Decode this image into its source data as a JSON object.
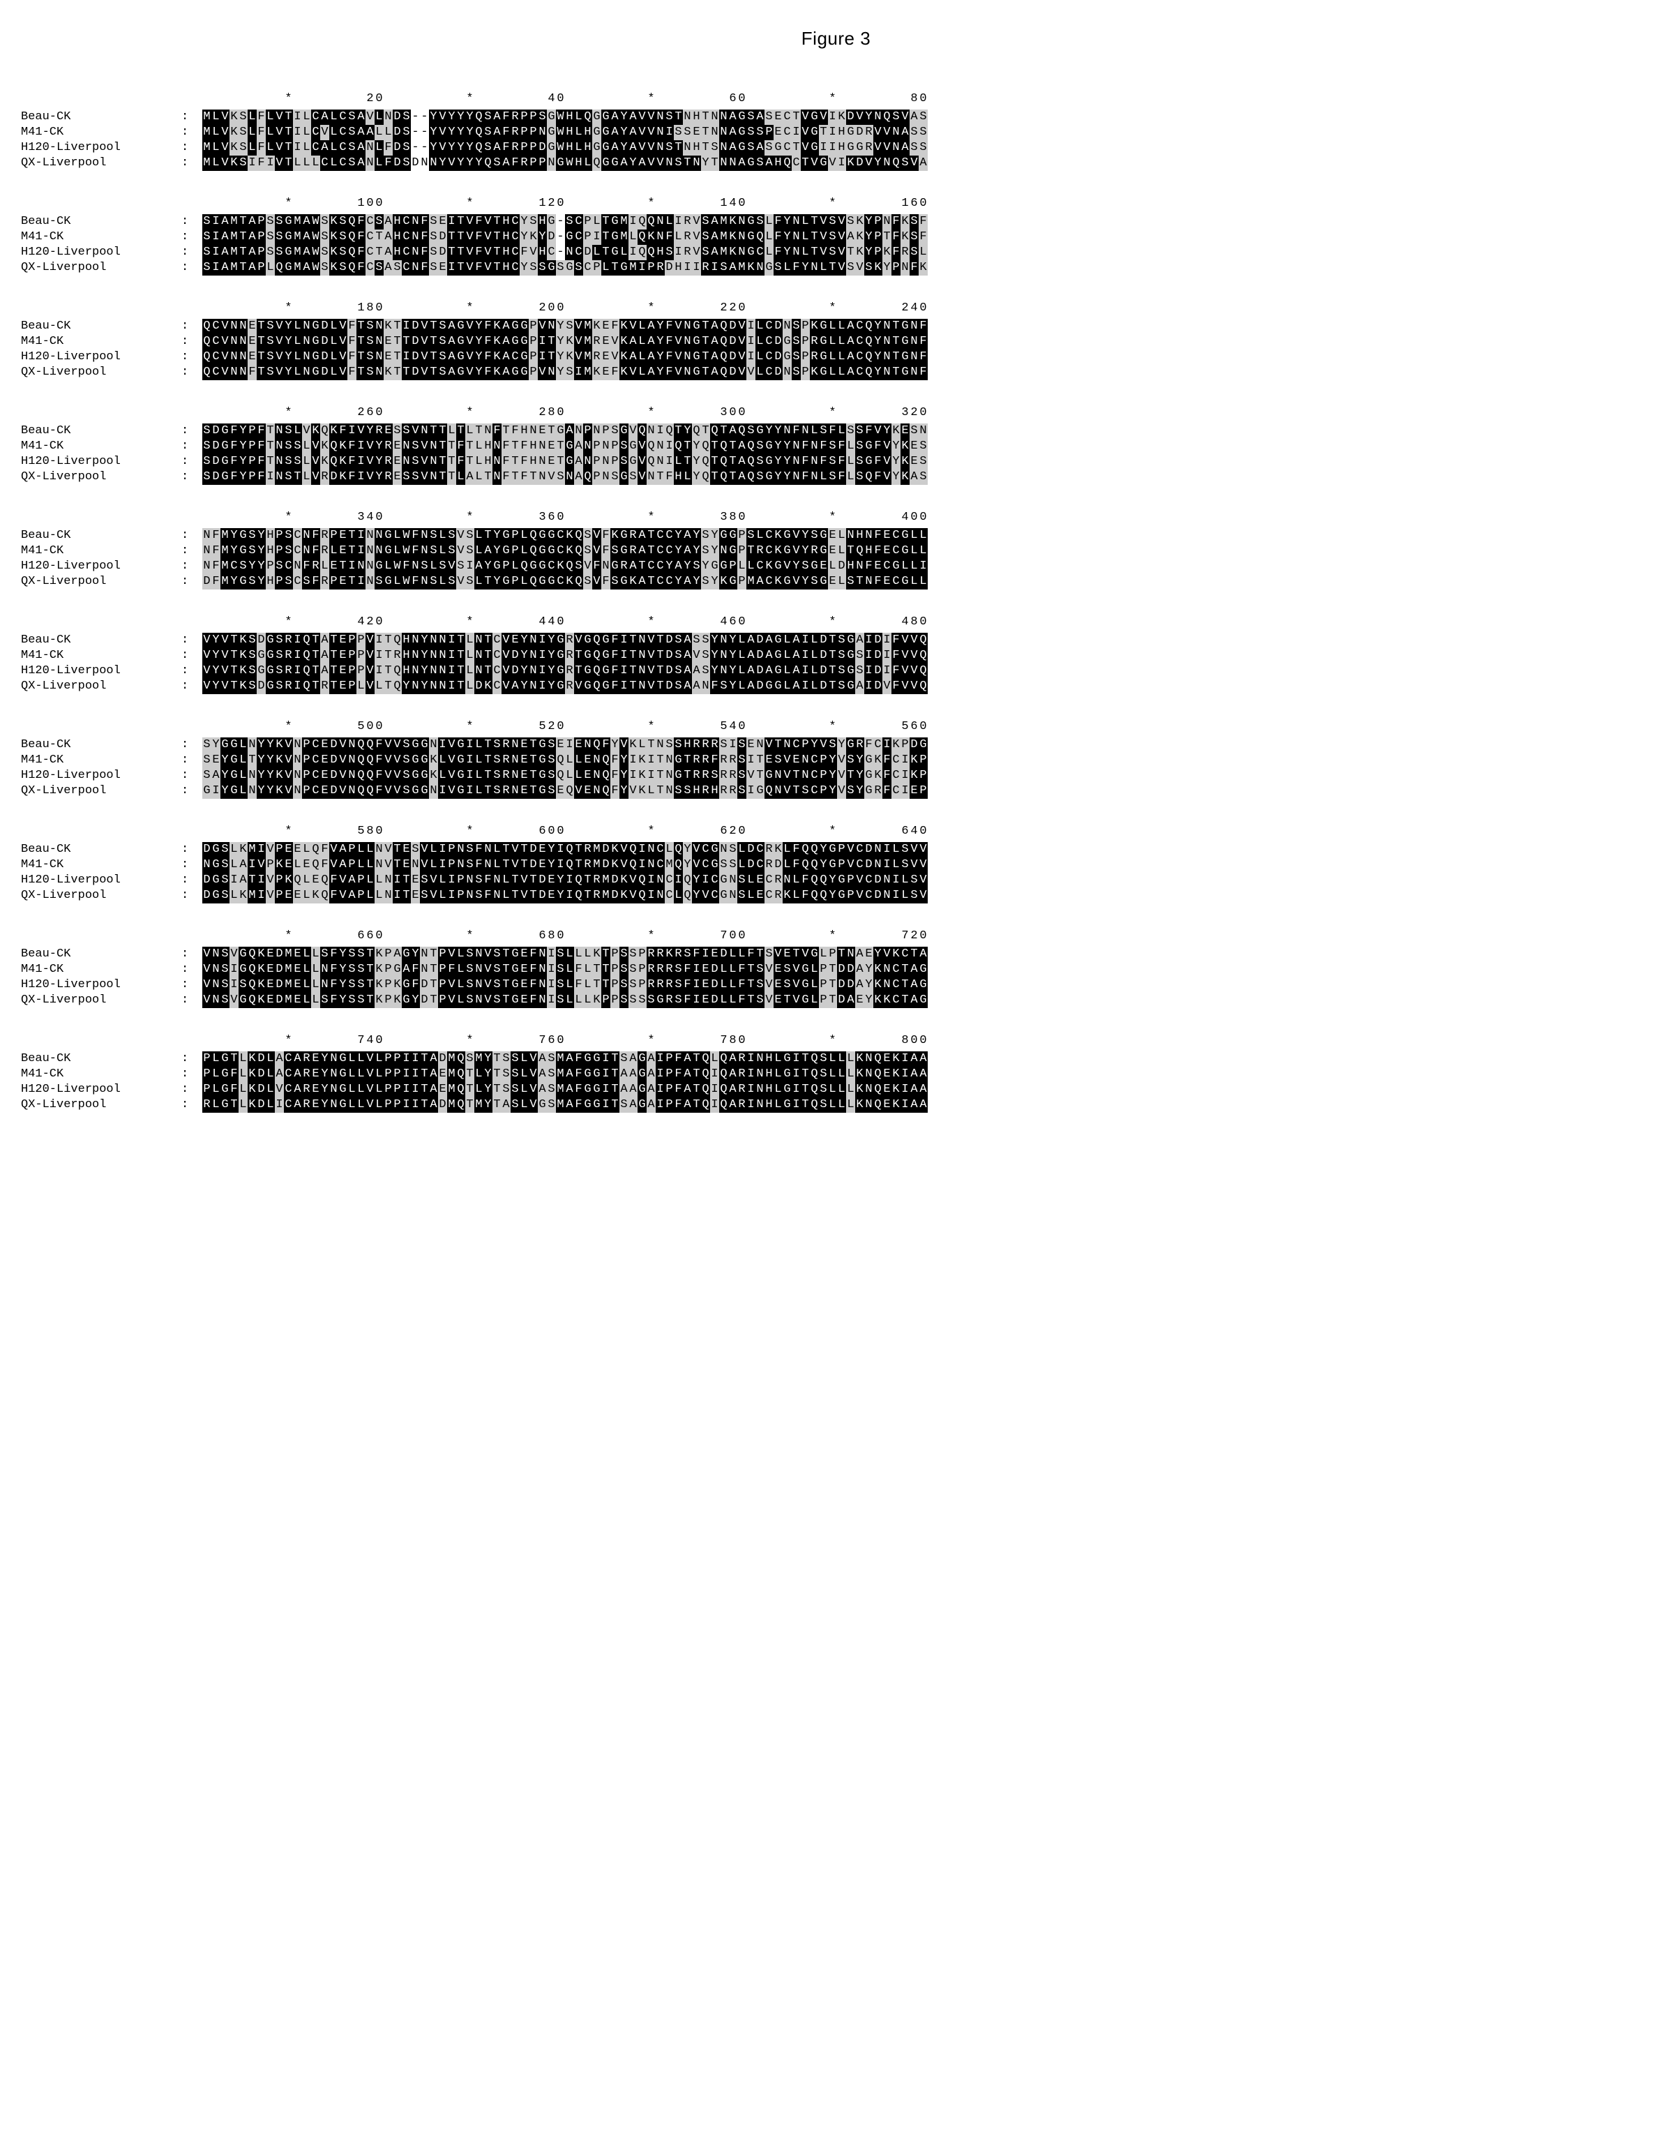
{
  "figure_title": "Figure 3",
  "labels": [
    "Beau-CK",
    "M41-CK",
    "H120-Liverpool",
    "QX-Liverpool"
  ],
  "ruler_marks": {
    "star": "*",
    "positions_per_block": 80
  },
  "tick_fontsize_pt": 13,
  "label_fontsize_pt": 13,
  "residue_fontsize_pt": 13,
  "font_family": "Courier New",
  "colors": {
    "plain_bg": "#ffffff",
    "plain_fg": "#000000",
    "grey_bg": "#cccccc",
    "grey_fg": "#000000",
    "black_bg": "#000000",
    "black_fg": "#ffffff",
    "page_bg": "#ffffff"
  },
  "color_legend": {
    "0": "no conservation / gap region (plain)",
    "1": "partial conservation (grey)",
    "2": "full conservation (black, inverted)"
  },
  "blocks": [
    {
      "start": 1,
      "end": 80,
      "ticks": [
        20,
        40,
        60,
        80
      ],
      "rows": [
        {
          "seq": "MLVKSLFLVTILCALCSAVLNDS--YVYYYQSAFRPPSGWHLQGGAYAVVNSTNHTNNAGSASECTVGVIKDVYNQSVAS",
          "col": "22211212221122222212122002222222222222122221222222222111122222111122211222222211"
        },
        {
          "seq": "MLVKSLFLVTILCVLCSAALLDS--YVYYYQSAFRPPNGWHLHGGAYAVVNISSETNNAGSSPECIVGTIHGDRVVNASS",
          "col": "22211212221121222221122002222222222222122221222222221111122222211122111111222211"
        },
        {
          "seq": "MLVKSLFLVTILCALCSANLFDS--YVYYYQSAFRPPDGWHLHGGAYAVVNSTNHTSNAGSASGCTVGIIHGGRVVNASS",
          "col": "22211212221122222212122002222222222222122221222222222111122222111122111111222211"
        },
        {
          "seq": "MLVKSIFIVTLLLCLCSANLFDSDNNYVYYYQSAFRPPNGWHLQGGAYAVVNSTNYTNNAGSAHQCTVGVIKDVYNQSVA",
          "col": "22222111221112222212222002222222222222122221222222222221122222222122211222222221"
        }
      ]
    },
    {
      "start": 81,
      "end": 160,
      "ticks": [
        100,
        120,
        140,
        160
      ],
      "rows": [
        {
          "seq": "SIAMTAPSSGMAWSKSQFCSAHCNFSEITVFVTHCYSHG-SCPLTGMIQQNLIRVSAMKNGSLFYNLTVSVSKYPNFKSF",
          "col": "22222221222221222212122221122222222112102211222112221112222222122222222112212121"
        },
        {
          "seq": "SIAMTAPSSGMAWSKSQFCTAHCNFSDTTVFVTHCYKYD-GCPITGMLQKNFLRVSAMKNGQLFYNLTVSVAKYPTFKSF",
          "col": "22222221222221222211122221122222222112102211222122221112222222122222222112212121"
        },
        {
          "seq": "SIAMTAPSSGMAWSKSQFCTAHCNFSDTTVFVTHCFVHC-NCDLTGLIQQHSIRVSAMKNGCLFYNLTVSVTKYPKFRSL",
          "col": "22222221222221222211122221122222222112102212222112221112222222122222222112212121"
        },
        {
          "seq": "SIAMTAPLQGMAWSKSQFCSASCNFSEITVFVTHCYSSGSGSCPLTGMIPRDHIIRISAMKNGSLFYNLTVSVSKYPNFKSF",
          "col": "22222221222221222212112221122222222112211211222222211112222222122222222112212121"
        }
      ]
    },
    {
      "start": 161,
      "end": 240,
      "ticks": [
        180,
        200,
        220,
        240
      ],
      "rows": [
        {
          "seq": "QCVNNETSVYLNGDLVFTSNKTIDVTSAGVYFKAGGPVNYSVMKEFKVLAYFVNGTAQDVILCDNSPKGLLACQYNTGNF",
          "col": "22222122222222221222112222222222222212211221112222222222222212221212222222222222"
        },
        {
          "seq": "QCVNNETSVYLNGDLVFTSNETTDVTSAGVYFKAGGPITYKVMREVKALAYFVNGTAQDVILCDGSPRGLLACQYNTGNF",
          "col": "22222122222222221222112222222222222212211221112222222222222212221212222222222222"
        },
        {
          "seq": "QCVNNETSVYLNGDLVFTSNETIDVTSAGVYFKACGPITYKVMREVKALAYFVNGTAQDVILCDGSPRGLLACQYNTGNF",
          "col": "22222122222222221222112222222222222212211221112222222222222212221212222222222222"
        },
        {
          "seq": "QCVNNFTSVYLNGDLVFTSNKTTDVTSAGVYFKAGGPVNYSIMKEFKVLAYFVNGTAQDVVLCDNSPKGLLACQYNTGNF",
          "col": "22222122222222221222112222222222222212211221112222222222222212221212222222222222"
        }
      ]
    },
    {
      "start": 241,
      "end": 320,
      "ticks": [
        260,
        280,
        300,
        320
      ],
      "rows": [
        {
          "seq": "SDGFYPFTNSLVKQKFIVYRESSVNTTLTLTNFTFHNETGANPNPSGVQNIQTYQTQTAQSGYYNFNLSFLSSFVYKESN",
          "col": "22222221222121222222212222212111211111112121112121112211222222222222222122221211"
        },
        {
          "seq": "SDGFYPFTNSSLVKQKFIVYRENSVNTTFTLHNFTFHNETGANPNPSGVQNIQTYQTQTAQSGYYNFNFSFLSGFVYKES",
          "col": "22222221222121222222212222212111211111112121112121112211222222222222222122221211"
        },
        {
          "seq": "SDGFYPFTNSSLVKQKFIVYRENSVNTTFTLHNFTFHNETGANPNPSGVQNILTYQTQTAQSGYYNFNFSFLSGFVYKES",
          "col": "22222221222121222222212222212111211111112121112121112211222222222222222122221211"
        },
        {
          "seq": "SDGFYPFINSTLVRDKFIVYRESSVNTTLALTNFTFTNVSNAQPNSGSVNTFHLYQTQTAQSGYYNFNLSFLSQFVYKAS",
          "col": "22222221222121222222212222212111211111112121112121112211222222222222222122221211"
        }
      ]
    },
    {
      "start": 321,
      "end": 400,
      "ticks": [
        340,
        360,
        380,
        400
      ],
      "rows": [
        {
          "seq": "NFMYGSYHPSCNFRPETINNGLWFNSLSVSLTYGPLQGGCKQSVFKGRATCCYAYSYGGPSLCKGVYSGELNHNFECGLL",
          "col": "11222221221221222212222222221122222222222212122222222221122122222222211222222222"
        },
        {
          "seq": "NFMYGSYHPSCNFRLETINNGLWFNSLSVSLAYGPLQGGCKQSVFSGRATCCYAYSYNGPTRCKGVYRGELTQHFECGLL",
          "col": "11222221221221222212222222221122222222222212122222222221122122222222211222222222"
        },
        {
          "seq": "NFMCSYYPSCNFRLETINNGLWFNSLSVSIAYGPLQGGCKQSVFNGRATCCYAYSYGGPLLCKGVYSGELDHNFECGLLI",
          "col": "11222221221221222212222222221122222222222212122222222221122122222222211222222222"
        },
        {
          "seq": "DFMYGSYHPSCSFRPETINSGLWFNSLSVSLTYGPLQGGCKQSVFSGKATCCYAYSYKGPMACKGVYSGELSTNFECGLL",
          "col": "11222221221221222212222222221122222222222212122222222221122122222222211222222222"
        }
      ]
    },
    {
      "start": 401,
      "end": 480,
      "ticks": [
        420,
        440,
        460,
        480
      ],
      "rows": [
        {
          "seq": "VYVTKSDGSRIQTATEPPVITQHNYNNITLNTCVEYNIYGRVGQGFITNVTDSASSYNYLADAGLAILDTSGAIDIFVVQ",
          "col": "22222212222221222121112222222122122222221222222222222211222222222222222212212222"
        },
        {
          "seq": "VYVTKSGGSRIQTATEPPVITRHNYNNITLNTCVDYNIYGRTGQGFITNVTDSAVSYNYLADAGLAILDTSGSIDIFVVQ",
          "col": "22222212222221222121112222222122122222221222222222222211222222222222222212212222"
        },
        {
          "seq": "VYVTKSGGSRIQTATEPPVITQHNYNNITLNTCVDYNIYGRTGQGFITNVTDSAASYNYLADAGLAILDTSGSIDIFVVQ",
          "col": "22222212222221222121112222222122122222221222222222222211222222222222222212212222"
        },
        {
          "seq": "VYVTKSDGSRIQTRTEPLVLTQYNYNNITLDKCVAYNIYGRVGQGFITNVTDSAANFSYLADGGLAILDTSGAIDVFVVQ",
          "col": "22222212222221222121112222222122122222221222222222222211222222222222222212212222"
        }
      ]
    },
    {
      "start": 481,
      "end": 560,
      "ticks": [
        500,
        520,
        540,
        560
      ],
      "rows": [
        {
          "seq": "SYGGLNYYKVNPCEDVNQQFVVSGGNIVGILTSRNETGSEIENQFYVKLTNSSHRRRSISENVTNCPYVSYGRFCIKPDG",
          "col": "11222122221222222222222221222222222222211222212111112222211211222222221221121122"
        },
        {
          "seq": "SEYGLTYYKVNPCEDVNQQFVVSGGKLVGILTSRNETGSQLLENQFYIKITNGTRRFRRSITESVENCPYVSYGKFCIKP",
          "col": "11222122221222222222222221222222222222211222212111112222211211222222221221121122"
        },
        {
          "seq": "SAYGLNYYKVNPCEDVNQQFVVSGGKLVGILTSRNETGSQLLENQFYIKITNGTRRSRRSVTGNVTNCPYVTYGKFCIKP",
          "col": "11222122221222222222222221222222222222211222212111112222211211222222221221121122"
        },
        {
          "seq": "GIYGLNYYKVNPCEDVNQQFVVSGGNIVGILTSRNETGSEQVENQFYVKLTNSSHRHRRSIGQNVTSCPYVSYGRFCIEP",
          "col": "11222122221222222222222221222222222222211222212111112222211211222222221221121122"
        }
      ]
    },
    {
      "start": 561,
      "end": 640,
      "ticks": [
        580,
        600,
        620,
        640
      ],
      "rows": [
        {
          "seq": "DGSLKMIVPEELQFVAPLLNVTESVLIPNSFNLTVTDEYIQTRMDKVQINCLQYVCGNSLDCRKLFQQYGPVCDNILSVV",
          "col": "22211221221111222221122122222222222222222222222222212122211222112222222222222222"
        },
        {
          "seq": "NGSLAIVPKELEQFVAPLLNVTENVLIPNSFNLTVTDEYIQTRMDKVQINCMQYVCGSSLDCRDLFQQYGPVCDNILSVV",
          "col": "22211221221111222221122122222222222222222222222222212122211222112222222222222222"
        },
        {
          "seq": "DGSIATIVPKQLEQFVAPLLNITESVLIPNSFNLTVTDEYIQTRMDKVQINCIQYICGNSLECRNLFQQYGPVCDNILSV",
          "col": "22211221221111222221122122222222222222222222222222212122211222112222222222222222"
        },
        {
          "seq": "DGSLKMIVPEELKQFVAPLLNITESVLIPNSFNLTVTDEYIQTRMDKVQINCLQYVCGNSLECRKLFQQYGPVCDNILSV",
          "col": "22211221221111222221122122222222222222222222222222212122211222112222222222222222"
        }
      ]
    },
    {
      "start": 641,
      "end": 720,
      "ticks": [
        660,
        680,
        700,
        720
      ],
      "rows": [
        {
          "seq": "VNSVGQKEDMELLSFYSSTKPAGYNTPVLSNVSTGEFNISLLLKTPSSPRRKRSFIEDLLFTSVETVGLPTNAEYVKCTAG",
          "col": "22212222222212222221112211222222222222122111212112222222222222122222112211222222"
        },
        {
          "seq": "VNSIGQKEDMELLNFYSSTKPGAFNTPFLSNVSTGEFNISLFLTTPSSPRRRSFIEDLLFTSVESVGLPTDDAYKNCTAG",
          "col": "22212222222212222221112211222222222222122111212112222222222222122222112211222222"
        },
        {
          "seq": "VNSISQKEDMELLNFYSSTKPKGFDTPVLSNVSTGEFNISLFLTTPSSPRRRSFIEDLLFTSVESVGLPTDDAYKNCTAG",
          "col": "22212222222212222221112211222222222222122111212112222222222222122222112211222222"
        },
        {
          "seq": "VNSVGQKEDMELLSFYSSTKPKGYDTPVLSNVSTGEFNISLLLKPPSSSSGRSFIEDLLFTSVETVGLPTDAEYKKCTAG",
          "col": "22212222222212222221112211222222222222122111212112222222222222122222112211222222"
        }
      ]
    },
    {
      "start": 721,
      "end": 800,
      "ticks": [
        740,
        760,
        780,
        800
      ],
      "rows": [
        {
          "seq": "PLGTLKDLACAREYNGLLVLPPIITADMQSMYTSSLVASMAFGGITSAGAIPFATQLQARINHLGITQSLLLKNQEKIAA",
          "col": "22221222122222222222222222122122112221122222221121222222122222222222222122222222"
        },
        {
          "seq": "PLGFLKDLACAREYNGLLVLPPIITAEMQTLYTSSLVASMAFGGITAAGAIPFATQIQARINHLGITQSLLLKNQEKIAA",
          "col": "22221222122222222222222222122122112221122222221121222222122222222222222122222222"
        },
        {
          "seq": "PLGFLKDLVCAREYNGLLVLPPIITAEMQTLYTSSLVASMAFGGITAAGAIPFATQIQARINHLGITQSLLLKNQEKIAA",
          "col": "22221222122222222222222222122122112221122222221121222222122222222222222122222222"
        },
        {
          "seq": "RLGTLKDLICAREYNGLLVLPPIITADMQTMYTASLVGSMAFGGITSAGAIPFATQIQARINHLGITQSLLLKNQEKIAA",
          "col": "22221222122222222222222222122122112221122222221121222222122222222222222122222222"
        }
      ]
    }
  ]
}
